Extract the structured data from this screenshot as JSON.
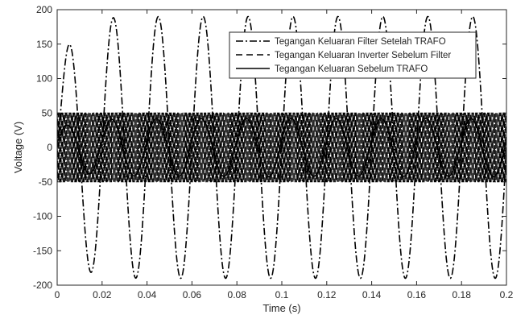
{
  "chart_data": {
    "type": "line",
    "xlabel": "Time (s)",
    "ylabel": "Voltage (V)",
    "xlim": [
      0,
      0.2
    ],
    "ylim": [
      -200,
      200
    ],
    "xticks": [
      0,
      0.02,
      0.04,
      0.06,
      0.08,
      0.1,
      0.12,
      0.14,
      0.16,
      0.18,
      0.2
    ],
    "xtick_labels": [
      "0",
      "0.02",
      "0.04",
      "0.06",
      "0.08",
      "0.1",
      "0.12",
      "0.14",
      "0.16",
      "0.18",
      "0.2"
    ],
    "yticks": [
      -200,
      -150,
      -100,
      -50,
      0,
      50,
      100,
      150,
      200
    ],
    "ytick_labels": [
      "-200",
      "-150",
      "-100",
      "-50",
      "0",
      "50",
      "100",
      "150",
      "200"
    ],
    "grid": false,
    "legend_position": "top-right",
    "series": [
      {
        "name": "Tegangan Keluaran Filter Setelah TRAFO",
        "line_style": "dash-dot",
        "frequency_hz": 50,
        "steady_amplitude": 190,
        "first_peak": {
          "t": 0.008,
          "v": 133
        },
        "first_trough": {
          "t": 0.018,
          "v": -197
        },
        "color": "#000000"
      },
      {
        "name": "Tegangan Keluaran Inverter Sebelum Filter",
        "line_style": "dashed",
        "waveform": "pwm",
        "amplitude": 50,
        "switching_frequency_hz": 2500,
        "color": "#000000"
      },
      {
        "name": "Tegangan Keluaran Sebelum TRAFO",
        "line_style": "solid",
        "frequency_hz": 50,
        "steady_amplitude": 42,
        "first_peak": {
          "t": 0.005,
          "v": 30
        },
        "color": "#000000"
      }
    ]
  }
}
